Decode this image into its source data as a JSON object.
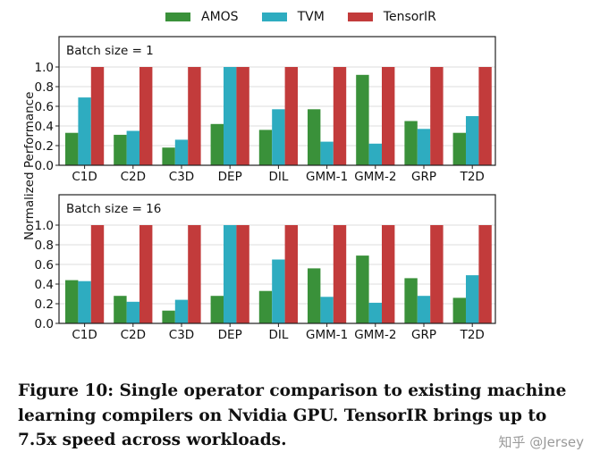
{
  "chart_data": [
    {
      "type": "bar",
      "title": "Batch size = 1",
      "ylabel": "Normalized Performance",
      "ylim": [
        0,
        1.0
      ],
      "yticks": [
        "0.0",
        "0.2",
        "0.4",
        "0.6",
        "0.8",
        "1.0"
      ],
      "grid": true,
      "categories": [
        "C1D",
        "C2D",
        "C3D",
        "DEP",
        "DIL",
        "GMM-1",
        "GMM-2",
        "GRP",
        "T2D"
      ],
      "series": [
        {
          "name": "AMOS",
          "color": "#3a913a",
          "values": [
            0.33,
            0.31,
            0.18,
            0.42,
            0.36,
            0.57,
            0.92,
            0.45,
            0.33
          ]
        },
        {
          "name": "TVM",
          "color": "#2eacc0",
          "values": [
            0.69,
            0.35,
            0.26,
            1.0,
            0.57,
            0.24,
            0.22,
            0.37,
            0.5
          ]
        },
        {
          "name": "TensorIR",
          "color": "#c23b3b",
          "values": [
            1.0,
            1.0,
            1.0,
            1.0,
            1.0,
            1.0,
            1.0,
            1.0,
            1.0
          ]
        }
      ]
    },
    {
      "type": "bar",
      "title": "Batch size = 16",
      "ylabel": "Normalized Performance",
      "ylim": [
        0,
        1.0
      ],
      "yticks": [
        "0.0",
        "0.2",
        "0.4",
        "0.6",
        "0.8",
        "1.0"
      ],
      "grid": true,
      "categories": [
        "C1D",
        "C2D",
        "C3D",
        "DEP",
        "DIL",
        "GMM-1",
        "GMM-2",
        "GRP",
        "T2D"
      ],
      "series": [
        {
          "name": "AMOS",
          "color": "#3a913a",
          "values": [
            0.44,
            0.28,
            0.13,
            0.28,
            0.33,
            0.56,
            0.69,
            0.46,
            0.26
          ]
        },
        {
          "name": "TVM",
          "color": "#2eacc0",
          "values": [
            0.43,
            0.22,
            0.24,
            1.0,
            0.65,
            0.27,
            0.21,
            0.28,
            0.49
          ]
        },
        {
          "name": "TensorIR",
          "color": "#c23b3b",
          "values": [
            1.0,
            1.0,
            1.0,
            1.0,
            1.0,
            1.0,
            1.0,
            1.0,
            1.0
          ]
        }
      ]
    }
  ],
  "legend": {
    "placement": "top",
    "items": [
      "AMOS",
      "TVM",
      "TensorIR"
    ]
  },
  "shared_ylabel": "Normalized Performance",
  "caption": "Figure 10: Single operator comparison to existing machine learning compilers on Nvidia GPU. TensorIR brings up to 7.5x speed across workloads.",
  "watermark": "知乎 @Jersey"
}
